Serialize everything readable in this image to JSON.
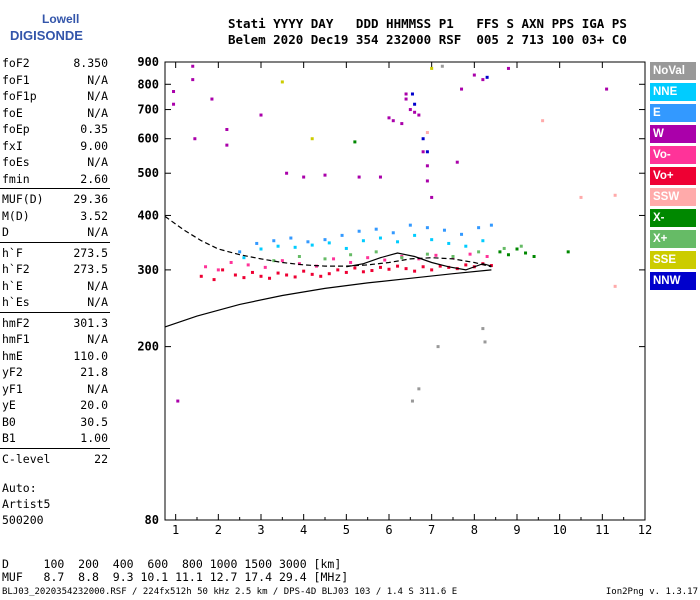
{
  "logo": {
    "line1": "Lowell",
    "line2": "DIGISONDE"
  },
  "header": {
    "line1": "Stati YYYY DAY   DDD HHMMSS P1   FFS S AXN PPS IGA PS",
    "line2": "Belem 2020 Dec19 354 232000 RSF  005 2 713 100 03+ C0"
  },
  "params": [
    {
      "k": "foF2",
      "v": "8.350"
    },
    {
      "k": "foF1",
      "v": "N/A"
    },
    {
      "k": "foF1p",
      "v": "N/A"
    },
    {
      "k": "foE",
      "v": "N/A"
    },
    {
      "k": "foEp",
      "v": "0.35"
    },
    {
      "k": "fxI",
      "v": "9.00"
    },
    {
      "k": "foEs",
      "v": "N/A"
    },
    {
      "k": "fmin",
      "v": "2.60"
    },
    {
      "k": "MUF(D)",
      "v": "29.36"
    },
    {
      "k": "M(D)",
      "v": "3.52"
    },
    {
      "k": "D",
      "v": "N/A"
    },
    {
      "k": "h`F",
      "v": "273.5"
    },
    {
      "k": "h`F2",
      "v": "273.5"
    },
    {
      "k": "h`E",
      "v": "N/A"
    },
    {
      "k": "h`Es",
      "v": "N/A"
    },
    {
      "k": "hmF2",
      "v": "301.3"
    },
    {
      "k": "hmF1",
      "v": "N/A"
    },
    {
      "k": "hmE",
      "v": "110.0"
    },
    {
      "k": "yF2",
      "v": "21.8"
    },
    {
      "k": "yF1",
      "v": "N/A"
    },
    {
      "k": "yE",
      "v": "20.0"
    },
    {
      "k": "B0",
      "v": "30.5"
    },
    {
      "k": "B1",
      "v": "1.00"
    },
    {
      "k": "C-level",
      "v": "22"
    }
  ],
  "auto": {
    "line1": "Auto:",
    "line2": "Artist5",
    "line3": "500200"
  },
  "legend": [
    {
      "label": "NoVal",
      "color": "#999999"
    },
    {
      "label": "NNE",
      "color": "#00ccff"
    },
    {
      "label": "E",
      "color": "#3399ff"
    },
    {
      "label": "W",
      "color": "#aa00aa"
    },
    {
      "label": "Vo-",
      "color": "#ff3399"
    },
    {
      "label": "Vo+",
      "color": "#ee0033"
    },
    {
      "label": "SSW",
      "color": "#ffaaaa"
    },
    {
      "label": "X-",
      "color": "#008800"
    },
    {
      "label": "X+",
      "color": "#66bb66"
    },
    {
      "label": "SSE",
      "color": "#cccc00"
    },
    {
      "label": "NNW",
      "color": "#0000cc"
    }
  ],
  "muf_table": {
    "line1": "D     100  200  400  600  800 1000 1500 3000 [km]",
    "line2": "MUF   8.7  8.8  9.3 10.1 11.1 12.7 17.4 29.4 [MHz]"
  },
  "footer": "BLJ03_2020354232000.RSF / 224fx512h 50 kHz 2.5 km / DPS-4D BLJ03 103 / 1.4 S 311.6 E",
  "version": "Ion2Png v. 1.3.17",
  "chart_data": {
    "type": "scatter",
    "xlim": [
      0.75,
      12
    ],
    "ylim": [
      80,
      900
    ],
    "y_scale": "log",
    "x_ticks": [
      1,
      2,
      3,
      4,
      5,
      6,
      7,
      8,
      9,
      10,
      11,
      12
    ],
    "y_ticks": [
      80,
      200,
      300,
      400,
      500,
      600,
      700,
      800,
      900
    ],
    "grid": false,
    "legend_position": "right",
    "series": [
      {
        "legend": "Vo+",
        "x": [
          1.6,
          1.9,
          2.1,
          2.4,
          2.6,
          2.8,
          3.0,
          3.2,
          3.4,
          3.6,
          3.8,
          4.0,
          4.2,
          4.4,
          4.6,
          4.8,
          5.0,
          5.2,
          5.4,
          5.6,
          5.8,
          6.0,
          6.2,
          6.4,
          6.6,
          6.8,
          7.0,
          7.2,
          7.4,
          7.6,
          7.8,
          8.0,
          8.2,
          8.4
        ],
        "y": [
          290,
          285,
          300,
          292,
          288,
          296,
          290,
          287,
          295,
          292,
          289,
          298,
          293,
          290,
          294,
          300,
          296,
          303,
          297,
          299,
          304,
          301,
          306,
          302,
          298,
          305,
          300,
          306,
          304,
          302,
          308,
          305,
          310,
          307
        ]
      },
      {
        "legend": "Vo-",
        "x": [
          1.7,
          2.0,
          2.3,
          2.7,
          3.1,
          3.5,
          3.9,
          4.3,
          4.7,
          5.1,
          5.5,
          5.9,
          6.3,
          6.7,
          7.1,
          7.5,
          7.9,
          8.3
        ],
        "y": [
          305,
          300,
          312,
          308,
          304,
          315,
          310,
          306,
          318,
          312,
          320,
          316,
          322,
          318,
          324,
          320,
          326,
          322
        ]
      },
      {
        "legend": "E",
        "x": [
          2.5,
          2.9,
          3.3,
          3.7,
          4.1,
          4.5,
          4.9,
          5.3,
          5.7,
          6.1,
          6.5,
          6.9,
          7.3,
          7.7,
          8.1,
          8.4
        ],
        "y": [
          330,
          345,
          350,
          355,
          348,
          352,
          360,
          368,
          372,
          365,
          380,
          375,
          370,
          362,
          375,
          380
        ]
      },
      {
        "legend": "NNE",
        "x": [
          2.6,
          3.0,
          3.4,
          3.8,
          4.2,
          4.6,
          5.0,
          5.4,
          5.8,
          6.2,
          6.6,
          7.0,
          7.4,
          7.8,
          8.2
        ],
        "y": [
          320,
          335,
          340,
          338,
          342,
          346,
          336,
          350,
          355,
          348,
          360,
          352,
          345,
          340,
          350
        ]
      },
      {
        "legend": "W",
        "x": [
          0.95,
          0.95,
          1.05,
          1.4,
          1.4,
          1.45,
          1.85,
          2.2,
          2.2,
          3.0,
          3.6,
          4.0,
          4.5,
          5.3,
          5.8,
          6.0,
          6.1,
          6.3,
          6.4,
          6.4,
          6.5,
          6.6,
          6.7,
          6.8,
          6.9,
          6.9,
          7.0,
          7.6,
          7.7,
          8.0,
          8.2,
          8.8,
          11.1
        ],
        "y": [
          770,
          720,
          150,
          880,
          820,
          600,
          740,
          630,
          580,
          680,
          500,
          490,
          495,
          490,
          490,
          670,
          660,
          650,
          760,
          740,
          700,
          690,
          680,
          560,
          520,
          480,
          440,
          530,
          780,
          840,
          820,
          870,
          780
        ]
      },
      {
        "legend": "NNW",
        "x": [
          6.55,
          6.6,
          6.8,
          6.9,
          8.3
        ],
        "y": [
          760,
          720,
          600,
          560,
          830
        ]
      },
      {
        "legend": "X-",
        "x": [
          8.6,
          8.8,
          9.0,
          9.2,
          9.4,
          10.2,
          5.2
        ],
        "y": [
          330,
          325,
          335,
          328,
          322,
          330,
          590
        ]
      },
      {
        "legend": "X+",
        "x": [
          3.3,
          3.9,
          4.5,
          5.1,
          5.7,
          6.3,
          6.9,
          7.5,
          8.1,
          8.7,
          9.1
        ],
        "y": [
          315,
          322,
          318,
          325,
          330,
          320,
          326,
          322,
          330,
          336,
          340
        ]
      },
      {
        "legend": "SSE",
        "x": [
          3.5,
          4.2,
          7.0
        ],
        "y": [
          810,
          600,
          870
        ]
      },
      {
        "legend": "SSW",
        "x": [
          10.5,
          11.3,
          11.3,
          9.6,
          6.9
        ],
        "y": [
          440,
          445,
          275,
          660,
          620
        ]
      },
      {
        "legend": "NoVal",
        "x": [
          7.15,
          7.25,
          8.2,
          8.25,
          6.55,
          6.7
        ],
        "y": [
          200,
          880,
          220,
          205,
          150,
          160
        ]
      }
    ],
    "curves": [
      {
        "style": "solid",
        "x": [
          0.75,
          1.5,
          2.5,
          3.5,
          4.5,
          5.5,
          6.5,
          7.5,
          8.4
        ],
        "y": [
          222,
          235,
          250,
          262,
          272,
          280,
          287,
          294,
          300
        ]
      },
      {
        "style": "dashed",
        "x": [
          0.75,
          1.2,
          1.6,
          2.0,
          2.5,
          3.0,
          3.5,
          4.0,
          4.5,
          5.0,
          5.5,
          6.0,
          6.5,
          7.0,
          7.5,
          8.0,
          8.4
        ],
        "y": [
          398,
          370,
          350,
          335,
          325,
          318,
          312,
          308,
          306,
          306,
          308,
          312,
          318,
          320,
          318,
          312,
          305
        ]
      },
      {
        "style": "solid",
        "x": [
          5.0,
          5.4,
          5.8,
          6.2,
          6.6,
          7.0,
          7.4,
          7.8,
          8.2,
          8.4
        ],
        "y": [
          305,
          310,
          320,
          328,
          322,
          312,
          305,
          300,
          310,
          306
        ]
      }
    ]
  }
}
